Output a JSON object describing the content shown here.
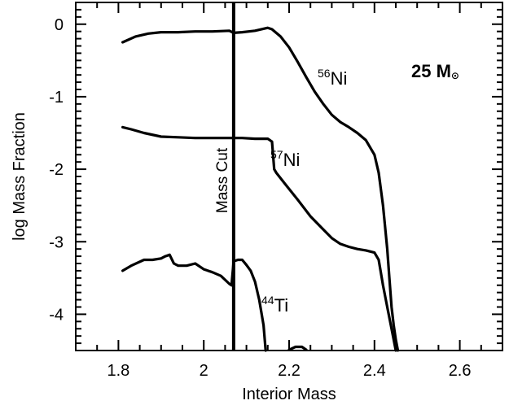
{
  "chart_data": {
    "type": "line",
    "title": "",
    "xlabel": "Interior Mass",
    "ylabel": "log Mass Fraction",
    "xlim": [
      1.7,
      2.7
    ],
    "ylim": [
      -4.5,
      0.3
    ],
    "x_ticks": [
      1.8,
      2,
      2.2,
      2.4,
      2.6
    ],
    "x_tick_labels": [
      "1.8",
      "2",
      "2.2",
      "2.4",
      "2.6"
    ],
    "y_ticks": [
      0,
      -1,
      -2,
      -3,
      -4
    ],
    "y_tick_labels": [
      "0",
      "-1",
      "-2",
      "-3",
      "-4"
    ],
    "grid": false,
    "legend": "none",
    "mass_label": {
      "prefix": "25 M",
      "symbol": "⊙"
    },
    "mass_cut": {
      "x": 2.07,
      "label": "Mass Cut"
    },
    "series": [
      {
        "name": "56Ni",
        "label_mass_number": "56",
        "label_element": "Ni",
        "color": "#000000",
        "x": [
          1.81,
          1.84,
          1.87,
          1.9,
          1.94,
          1.98,
          2.02,
          2.06,
          2.07,
          2.09,
          2.12,
          2.15,
          2.16,
          2.18,
          2.2,
          2.22,
          2.24,
          2.26,
          2.28,
          2.3,
          2.32,
          2.34,
          2.36,
          2.38,
          2.4,
          2.41,
          2.42,
          2.43,
          2.435,
          2.44,
          2.445,
          2.45,
          2.455
        ],
        "y": [
          -0.25,
          -0.17,
          -0.13,
          -0.11,
          -0.11,
          -0.1,
          -0.1,
          -0.09,
          -0.12,
          -0.11,
          -0.09,
          -0.05,
          -0.07,
          -0.17,
          -0.32,
          -0.52,
          -0.73,
          -0.93,
          -1.1,
          -1.25,
          -1.35,
          -1.42,
          -1.5,
          -1.6,
          -1.8,
          -2.05,
          -2.5,
          -3.1,
          -3.5,
          -3.9,
          -4.15,
          -4.35,
          -4.5
        ]
      },
      {
        "name": "57Ni",
        "label_mass_number": "57",
        "label_element": "Ni",
        "color": "#000000",
        "x": [
          1.81,
          1.83,
          1.86,
          1.9,
          1.94,
          1.98,
          2.02,
          2.06,
          2.09,
          2.12,
          2.15,
          2.16,
          2.165,
          2.17,
          2.19,
          2.22,
          2.25,
          2.28,
          2.3,
          2.32,
          2.34,
          2.36,
          2.38,
          2.4,
          2.41,
          2.42,
          2.43,
          2.44,
          2.45
        ],
        "y": [
          -1.42,
          -1.45,
          -1.5,
          -1.55,
          -1.56,
          -1.57,
          -1.57,
          -1.57,
          -1.57,
          -1.58,
          -1.58,
          -1.62,
          -2.0,
          -2.05,
          -2.2,
          -2.42,
          -2.65,
          -2.83,
          -2.95,
          -3.03,
          -3.07,
          -3.1,
          -3.12,
          -3.15,
          -3.25,
          -3.6,
          -3.9,
          -4.2,
          -4.5
        ]
      },
      {
        "name": "44Ti",
        "label_mass_number": "44",
        "label_element": "Ti",
        "color": "#000000",
        "x": [
          1.81,
          1.83,
          1.86,
          1.88,
          1.9,
          1.91,
          1.92,
          1.93,
          1.94,
          1.96,
          1.98,
          2.0,
          2.02,
          2.04,
          2.06,
          2.065,
          2.07,
          2.08,
          2.09,
          2.1,
          2.11,
          2.12,
          2.13,
          2.14,
          2.145
        ],
        "y": [
          -3.4,
          -3.33,
          -3.25,
          -3.25,
          -3.23,
          -3.2,
          -3.18,
          -3.3,
          -3.33,
          -3.33,
          -3.3,
          -3.38,
          -3.42,
          -3.47,
          -3.58,
          -3.6,
          -3.27,
          -3.25,
          -3.25,
          -3.32,
          -3.4,
          -3.55,
          -3.8,
          -4.15,
          -4.5
        ]
      },
      {
        "name": "",
        "color": "#000000",
        "x": [
          2.2,
          2.215,
          2.23,
          2.24
        ],
        "y": [
          -4.49,
          -4.45,
          -4.45,
          -4.49
        ]
      }
    ]
  }
}
